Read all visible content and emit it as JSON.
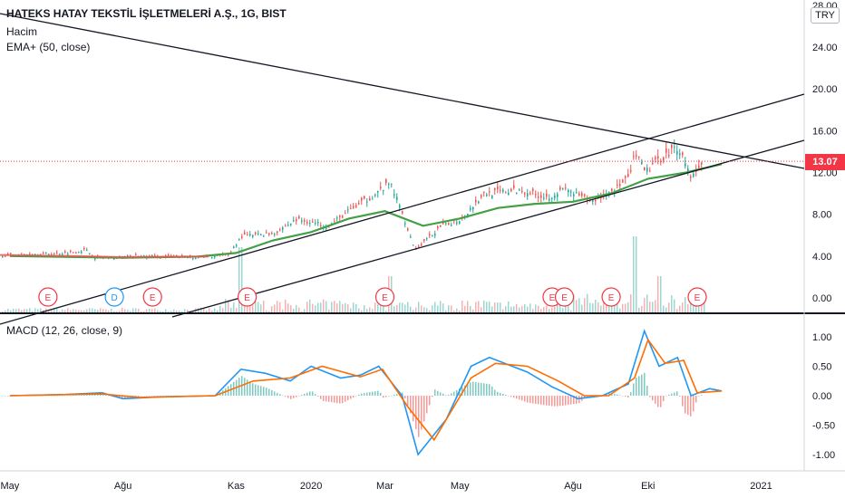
{
  "legend": {
    "title": "HATEKS HATAY TEKSTİL İŞLETMELERİ A.Ş., 1G, BIST",
    "volume": "Hacim",
    "ema": "EMA+ (50, close)",
    "macd": "MACD (12, 26, close, 9)"
  },
  "currency": "TRY",
  "last_price_label": "13.07",
  "colors": {
    "up": "#26a69a",
    "down": "#ef5350",
    "ema": "#43a047",
    "macd": "#2196f3",
    "signal": "#ff6d00",
    "trendline": "#131722",
    "last_price": "#f23645",
    "event_earnings": "#f23645",
    "event_dividend": "#2196f3"
  },
  "chart_data": [
    {
      "type": "candlestick",
      "name": "HATEKS price",
      "y_axis_ticks": [
        "28.00",
        "24.00",
        "20.00",
        "16.00",
        "12.00",
        "8.00",
        "4.00",
        "0.00"
      ],
      "x_axis_ticks": [
        "May",
        "Ağu",
        "Kas",
        "2020",
        "Mar",
        "May",
        "Ağu",
        "Eki",
        "2021"
      ],
      "ylim": [
        -1.5,
        28
      ],
      "last_price": 13.07,
      "ema_series": {
        "name": "EMA+ (50, close)",
        "points": [
          [
            "2019-05-01",
            4.0
          ],
          [
            "2019-06-01",
            3.95
          ],
          [
            "2019-07-01",
            3.9
          ],
          [
            "2019-08-01",
            3.85
          ],
          [
            "2019-09-01",
            3.9
          ],
          [
            "2019-10-01",
            3.95
          ],
          [
            "2019-11-01",
            4.3
          ],
          [
            "2019-12-01",
            5.5
          ],
          [
            "2020-01-01",
            6.3
          ],
          [
            "2020-02-01",
            7.6
          ],
          [
            "2020-03-01",
            8.3
          ],
          [
            "2020-04-01",
            6.9
          ],
          [
            "2020-05-01",
            7.6
          ],
          [
            "2020-06-01",
            8.6
          ],
          [
            "2020-07-01",
            9.0
          ],
          [
            "2020-08-01",
            9.2
          ],
          [
            "2020-09-01",
            10.0
          ],
          [
            "2020-10-01",
            11.4
          ],
          [
            "2020-11-01",
            12.0
          ],
          [
            "2020-11-30",
            12.8
          ]
        ]
      },
      "close_path": [
        [
          "2019-05-01",
          4.1
        ],
        [
          "2019-06-15",
          4.3
        ],
        [
          "2019-07-01",
          4.6
        ],
        [
          "2019-07-10",
          3.8
        ],
        [
          "2019-08-15",
          4.0
        ],
        [
          "2019-10-01",
          3.9
        ],
        [
          "2019-10-25",
          4.1
        ],
        [
          "2019-11-05",
          5.9
        ],
        [
          "2019-12-01",
          6.2
        ],
        [
          "2019-12-20",
          7.5
        ],
        [
          "2020-01-15",
          6.9
        ],
        [
          "2020-02-01",
          8.4
        ],
        [
          "2020-02-20",
          9.8
        ],
        [
          "2020-03-05",
          11.0
        ],
        [
          "2020-03-15",
          8.0
        ],
        [
          "2020-03-25",
          4.6
        ],
        [
          "2020-04-15",
          6.8
        ],
        [
          "2020-05-01",
          7.5
        ],
        [
          "2020-05-20",
          10.0
        ],
        [
          "2020-06-20",
          10.3
        ],
        [
          "2020-07-10",
          9.6
        ],
        [
          "2020-07-25",
          10.4
        ],
        [
          "2020-08-15",
          9.2
        ],
        [
          "2020-09-01",
          10.3
        ],
        [
          "2020-09-15",
          11.4
        ],
        [
          "2020-09-20",
          13.9
        ],
        [
          "2020-09-28",
          12.0
        ],
        [
          "2020-10-10",
          13.3
        ],
        [
          "2020-10-25",
          14.5
        ],
        [
          "2020-11-05",
          11.5
        ],
        [
          "2020-11-15",
          13.2
        ],
        [
          "2020-11-30",
          13.07
        ]
      ],
      "volume_spikes": [
        [
          "2019-11-05",
          1.8
        ],
        [
          "2020-03-05",
          1.0
        ],
        [
          "2020-09-20",
          2.1
        ],
        [
          "2020-10-10",
          1.0
        ]
      ],
      "events": [
        {
          "date": "2019-06-01",
          "label": "E"
        },
        {
          "date": "2019-07-25",
          "label": "D"
        },
        {
          "date": "2019-08-25",
          "label": "E"
        },
        {
          "date": "2019-11-10",
          "label": "E"
        },
        {
          "date": "2020-03-01",
          "label": "E"
        },
        {
          "date": "2020-07-15",
          "label": "E"
        },
        {
          "date": "2020-07-25",
          "label": "E"
        },
        {
          "date": "2020-09-01",
          "label": "E"
        },
        {
          "date": "2020-11-10",
          "label": "E"
        }
      ]
    },
    {
      "type": "line",
      "name": "MACD (12, 26, close, 9)",
      "y_axis_ticks": [
        "1.00",
        "0.50",
        "0.00",
        "-0.50",
        "-1.00"
      ],
      "ylim": [
        -1.2,
        1.2
      ],
      "series": [
        {
          "name": "macd",
          "points": [
            [
              "2019-05-01",
              0.0
            ],
            [
              "2019-06-15",
              0.02
            ],
            [
              "2019-07-15",
              0.05
            ],
            [
              "2019-08-01",
              -0.05
            ],
            [
              "2019-09-01",
              -0.02
            ],
            [
              "2019-10-15",
              0.0
            ],
            [
              "2019-11-05",
              0.45
            ],
            [
              "2019-11-25",
              0.38
            ],
            [
              "2019-12-15",
              0.25
            ],
            [
              "2020-01-01",
              0.5
            ],
            [
              "2020-01-25",
              0.3
            ],
            [
              "2020-02-10",
              0.35
            ],
            [
              "2020-02-25",
              0.5
            ],
            [
              "2020-03-15",
              0.0
            ],
            [
              "2020-03-28",
              -1.0
            ],
            [
              "2020-04-20",
              -0.4
            ],
            [
              "2020-05-10",
              0.5
            ],
            [
              "2020-05-25",
              0.65
            ],
            [
              "2020-06-25",
              0.4
            ],
            [
              "2020-07-15",
              0.15
            ],
            [
              "2020-08-05",
              -0.05
            ],
            [
              "2020-08-25",
              0.0
            ],
            [
              "2020-09-15",
              0.2
            ],
            [
              "2020-09-28",
              1.1
            ],
            [
              "2020-10-10",
              0.5
            ],
            [
              "2020-10-25",
              0.65
            ],
            [
              "2020-11-05",
              0.0
            ],
            [
              "2020-11-20",
              0.12
            ],
            [
              "2020-11-30",
              0.08
            ]
          ]
        },
        {
          "name": "signal",
          "points": [
            [
              "2019-05-01",
              0.0
            ],
            [
              "2019-07-15",
              0.03
            ],
            [
              "2019-08-15",
              -0.03
            ],
            [
              "2019-10-15",
              0.0
            ],
            [
              "2019-11-15",
              0.25
            ],
            [
              "2019-12-15",
              0.3
            ],
            [
              "2020-01-10",
              0.5
            ],
            [
              "2020-02-10",
              0.32
            ],
            [
              "2020-02-28",
              0.45
            ],
            [
              "2020-03-20",
              -0.2
            ],
            [
              "2020-04-10",
              -0.75
            ],
            [
              "2020-05-10",
              0.3
            ],
            [
              "2020-05-30",
              0.55
            ],
            [
              "2020-06-25",
              0.5
            ],
            [
              "2020-07-20",
              0.25
            ],
            [
              "2020-08-10",
              0.0
            ],
            [
              "2020-08-30",
              0.0
            ],
            [
              "2020-09-20",
              0.3
            ],
            [
              "2020-10-01",
              0.95
            ],
            [
              "2020-10-15",
              0.55
            ],
            [
              "2020-10-30",
              0.6
            ],
            [
              "2020-11-10",
              0.05
            ],
            [
              "2020-11-30",
              0.08
            ]
          ]
        }
      ]
    }
  ]
}
